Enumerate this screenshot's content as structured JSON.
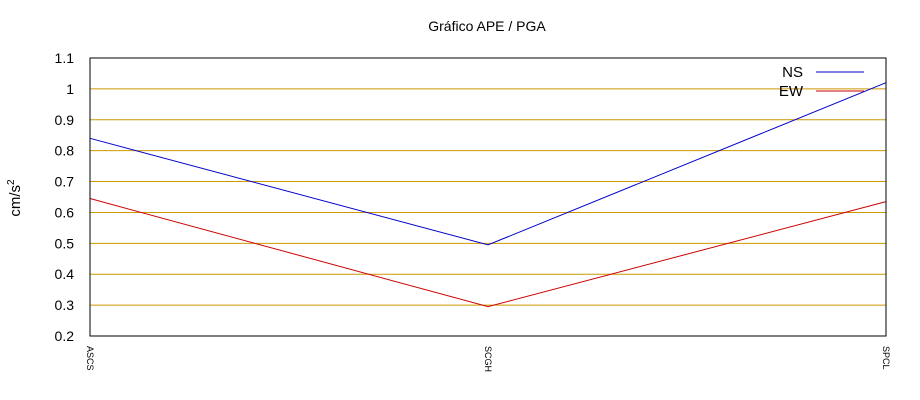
{
  "chart_data": {
    "type": "line",
    "title": "Gráfico  APE / PGA",
    "xlabel": "",
    "ylabel_base": "cm/s",
    "ylabel_exp": "2",
    "categories": [
      "ASCS",
      "SCGH",
      "SPCL"
    ],
    "ylim": [
      0.2,
      1.1
    ],
    "yticks": [
      "0.2",
      "0.3",
      "0.4",
      "0.5",
      "0.6",
      "0.7",
      "0.8",
      "0.9",
      "1",
      "1.1"
    ],
    "grid": true,
    "legend_position": "top-right",
    "series": [
      {
        "name": "NS",
        "color": "#0000cc",
        "values": [
          0.84,
          0.495,
          1.02
        ]
      },
      {
        "name": "EW",
        "color": "#cc0000",
        "values": [
          0.645,
          0.295,
          0.635
        ]
      }
    ],
    "colors": {
      "grid": "#cc9900",
      "axis": "#000000"
    }
  }
}
